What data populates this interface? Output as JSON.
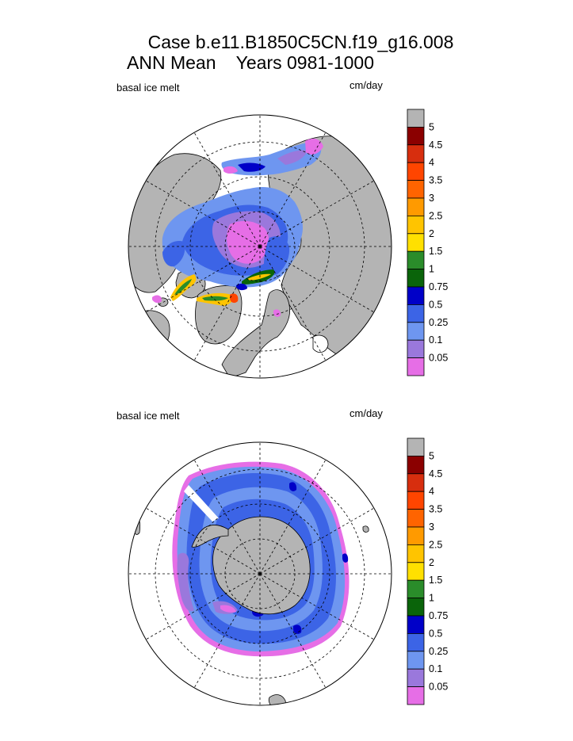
{
  "title": {
    "line1": "Case b.e11.B1850C5CN.f19_g16.008",
    "line2": "ANN Mean    Years 0981-1000"
  },
  "panels": [
    {
      "name": "north",
      "variable": "basal ice melt",
      "units": "cm/day",
      "hemisphere": "Northern"
    },
    {
      "name": "south",
      "variable": "basal ice melt",
      "units": "cm/day",
      "hemisphere": "Southern"
    }
  ],
  "colorbar": {
    "levels": [
      "5",
      "4.5",
      "4",
      "3.5",
      "3",
      "2.5",
      "2",
      "1.5",
      "1",
      "0.75",
      "0.5",
      "0.25",
      "0.1",
      "0.05"
    ],
    "colors": [
      "#b4b4b4",
      "#8b0000",
      "#d72e0e",
      "#ff4500",
      "#ff6400",
      "#ff9a00",
      "#ffc400",
      "#ffe000",
      "#2a8c2a",
      "#0a640a",
      "#0000c8",
      "#3c64e6",
      "#6e96f0",
      "#9a78dc",
      "#e66ee6"
    ]
  },
  "colors": {
    "land": "#b4b4b4",
    "ocean": "#ffffff",
    "ice_light": "#6e96f0",
    "ice_mid": "#3c64e6",
    "ice_dark": "#0000c8",
    "ice_pink": "#e66ee6",
    "ice_purple": "#9a78dc"
  }
}
